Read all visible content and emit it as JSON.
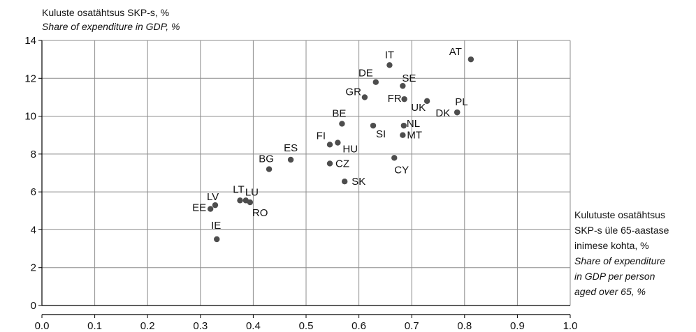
{
  "chart_data": {
    "type": "scatter",
    "ylabel": [
      "Kuluste osatähtsus SKP-s, %",
      "Share of expenditure in GDP, %"
    ],
    "xlabel": [
      "Kulutuste osatähtsus",
      "SKP-s üle 65-aastase",
      "inimese kohta, %",
      "Share of expenditure",
      "in GDP per person",
      "aged over 65, %"
    ],
    "xlim": [
      0.0,
      1.0
    ],
    "ylim": [
      0,
      14
    ],
    "x_ticks": [
      "0.0",
      "0.1",
      "0.2",
      "0.3",
      "0.4",
      "0.5",
      "0.6",
      "0.7",
      "0.8",
      "0.9",
      "1.0"
    ],
    "y_ticks": [
      "0",
      "2",
      "4",
      "6",
      "8",
      "10",
      "12",
      "14"
    ],
    "grid": true,
    "marker_color": "#4d4d4d",
    "points": [
      {
        "label": "AT",
        "x": 0.812,
        "y": 13.0
      },
      {
        "label": "IT",
        "x": 0.658,
        "y": 12.7
      },
      {
        "label": "DE",
        "x": 0.632,
        "y": 11.8
      },
      {
        "label": "SE",
        "x": 0.683,
        "y": 11.6
      },
      {
        "label": "GR",
        "x": 0.611,
        "y": 11.0
      },
      {
        "label": "FR",
        "x": 0.686,
        "y": 10.9
      },
      {
        "label": "UK",
        "x": 0.729,
        "y": 10.8
      },
      {
        "label": "PL",
        "x": 0.786,
        "y": 10.2
      },
      {
        "label": "DK",
        "x": 0.786,
        "y": 10.2
      },
      {
        "label": "BE",
        "x": 0.568,
        "y": 9.6
      },
      {
        "label": "SI",
        "x": 0.627,
        "y": 9.5
      },
      {
        "label": "NL",
        "x": 0.685,
        "y": 9.5
      },
      {
        "label": "MT",
        "x": 0.683,
        "y": 9.0
      },
      {
        "label": "FI",
        "x": 0.545,
        "y": 8.5
      },
      {
        "label": "HU",
        "x": 0.56,
        "y": 8.6
      },
      {
        "label": "CY",
        "x": 0.667,
        "y": 7.8
      },
      {
        "label": "ES",
        "x": 0.471,
        "y": 7.7
      },
      {
        "label": "CZ",
        "x": 0.545,
        "y": 7.5
      },
      {
        "label": "BG",
        "x": 0.43,
        "y": 7.2
      },
      {
        "label": "SK",
        "x": 0.573,
        "y": 6.55
      },
      {
        "label": "LT",
        "x": 0.375,
        "y": 5.55
      },
      {
        "label": "LU",
        "x": 0.386,
        "y": 5.55
      },
      {
        "label": "RO",
        "x": 0.394,
        "y": 5.45
      },
      {
        "label": "LV",
        "x": 0.328,
        "y": 5.3
      },
      {
        "label": "EE",
        "x": 0.319,
        "y": 5.1
      },
      {
        "label": "IE",
        "x": 0.331,
        "y": 3.5
      }
    ]
  }
}
